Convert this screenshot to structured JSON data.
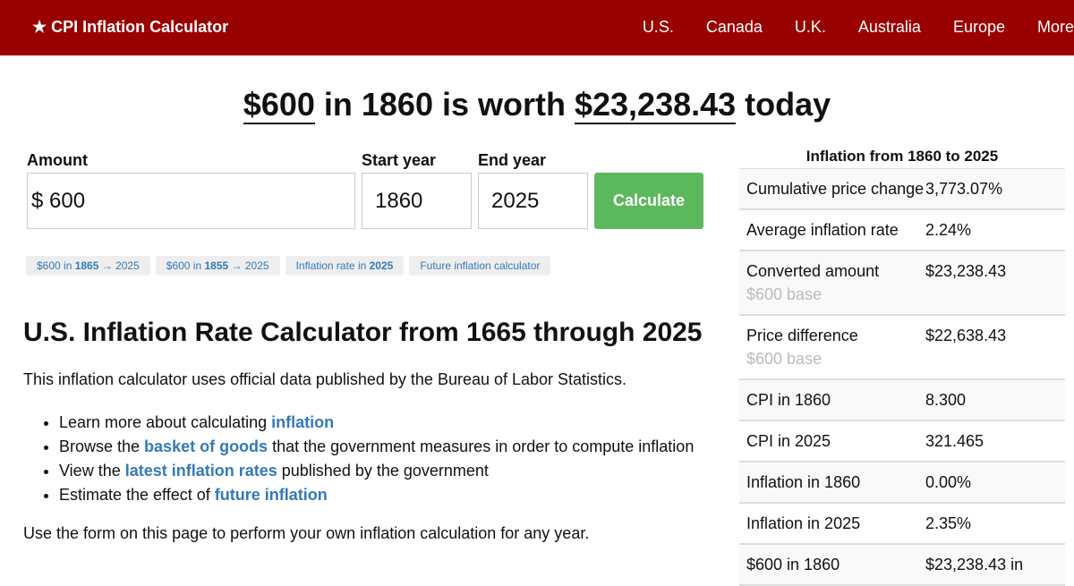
{
  "nav": {
    "brand": "★ CPI Inflation Calculator",
    "links": [
      "U.S.",
      "Canada",
      "U.K.",
      "Australia",
      "Europe",
      "More"
    ]
  },
  "headline": {
    "amount": "$600",
    "mid1": " in 1860 is worth ",
    "value": "$23,238.43",
    "end": " today"
  },
  "form": {
    "amount_label": "Amount",
    "amount": "$ 600",
    "start_label": "Start year",
    "start": "1860",
    "end_label": "End year",
    "end": "2025",
    "button": "Calculate"
  },
  "chips": [
    {
      "a": "$600 in ",
      "b": "1865",
      "c": " → 2025"
    },
    {
      "a": "$600 in ",
      "b": "1855",
      "c": " → 2025"
    },
    {
      "a": "Inflation rate in ",
      "b": "2025",
      "c": ""
    },
    {
      "a": "Future inflation calculator",
      "b": "",
      "c": ""
    }
  ],
  "article": {
    "title": "U.S. Inflation Rate Calculator from 1665 through 2025",
    "intro": "This inflation calculator uses official data published by the Bureau of Labor Statistics.",
    "bullets": [
      {
        "pre": "Learn more about calculating ",
        "link": "inflation",
        "post": ""
      },
      {
        "pre": "Browse the ",
        "link": "basket of goods",
        "post": " that the government measures in order to compute inflation"
      },
      {
        "pre": "View the ",
        "link": "latest inflation rates",
        "post": " published by the government"
      },
      {
        "pre": "Estimate the effect of ",
        "link": "future inflation",
        "post": ""
      }
    ],
    "outro": "Use the form on this page to perform your own inflation calculation for any year."
  },
  "side": {
    "title": "Inflation from 1860 to 2025",
    "rows": [
      {
        "k": "Cumulative price change",
        "v": "3,773.07%",
        "s": ""
      },
      {
        "k": "Average inflation rate",
        "v": "2.24%",
        "s": ""
      },
      {
        "k": "Converted amount",
        "v": "$23,238.43",
        "s": "$600 base"
      },
      {
        "k": "Price difference",
        "v": "$22,638.43",
        "s": "$600 base"
      },
      {
        "k": "CPI in 1860",
        "v": "8.300",
        "s": ""
      },
      {
        "k": "CPI in 2025",
        "v": "321.465",
        "s": ""
      },
      {
        "k": "Inflation in 1860",
        "v": "0.00%",
        "s": ""
      },
      {
        "k": "Inflation in 2025",
        "v": "2.35%",
        "s": ""
      },
      {
        "k": "$600 in 1860",
        "v": "$23,238.43 in",
        "s": ""
      }
    ]
  }
}
